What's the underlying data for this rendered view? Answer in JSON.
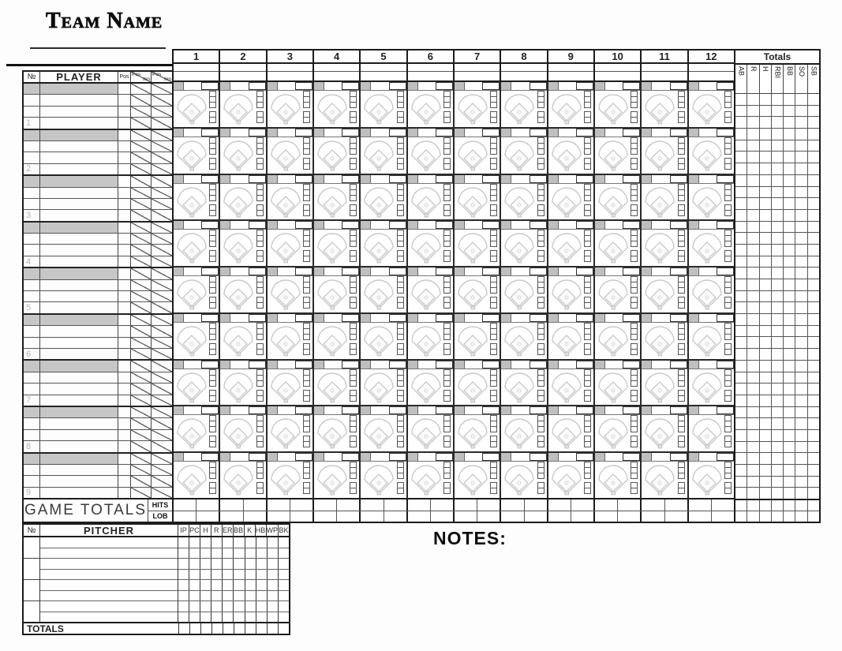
{
  "title": "Team Name",
  "roster": {
    "header": {
      "number": "№",
      "player": "PLAYER",
      "pos": "Pos",
      "pos_label": "Pos",
      "inn_label": "Inn"
    },
    "slots": [
      "1",
      "2",
      "3",
      "4",
      "5",
      "6",
      "7",
      "8",
      "9"
    ]
  },
  "innings": [
    "1",
    "2",
    "3",
    "4",
    "5",
    "6",
    "7",
    "8",
    "9",
    "10",
    "11",
    "12"
  ],
  "totals": {
    "title": "Totals",
    "columns": [
      "AB",
      "R",
      "H",
      "RBI",
      "BB",
      "SO",
      "SB"
    ]
  },
  "game_totals": {
    "label": "GAME TOTALS",
    "row_labels": [
      "HITS",
      "LOB"
    ]
  },
  "pitchers": {
    "header": {
      "number": "№",
      "name": "PITCHER"
    },
    "stat_columns": [
      "IP",
      "PC",
      "H",
      "R",
      "ER",
      "BB",
      "K",
      "HB",
      "WP",
      "BK"
    ],
    "totals_label": "TOTALS"
  },
  "notes_label": "NOTES:",
  "colors": {
    "line_dark": "#1c1c1c",
    "line_thin": "#555555",
    "shaded_cell": "#c6c6c6",
    "marker_gray": "#bfbfbf",
    "diamond_gray": "#c9c9c9"
  }
}
